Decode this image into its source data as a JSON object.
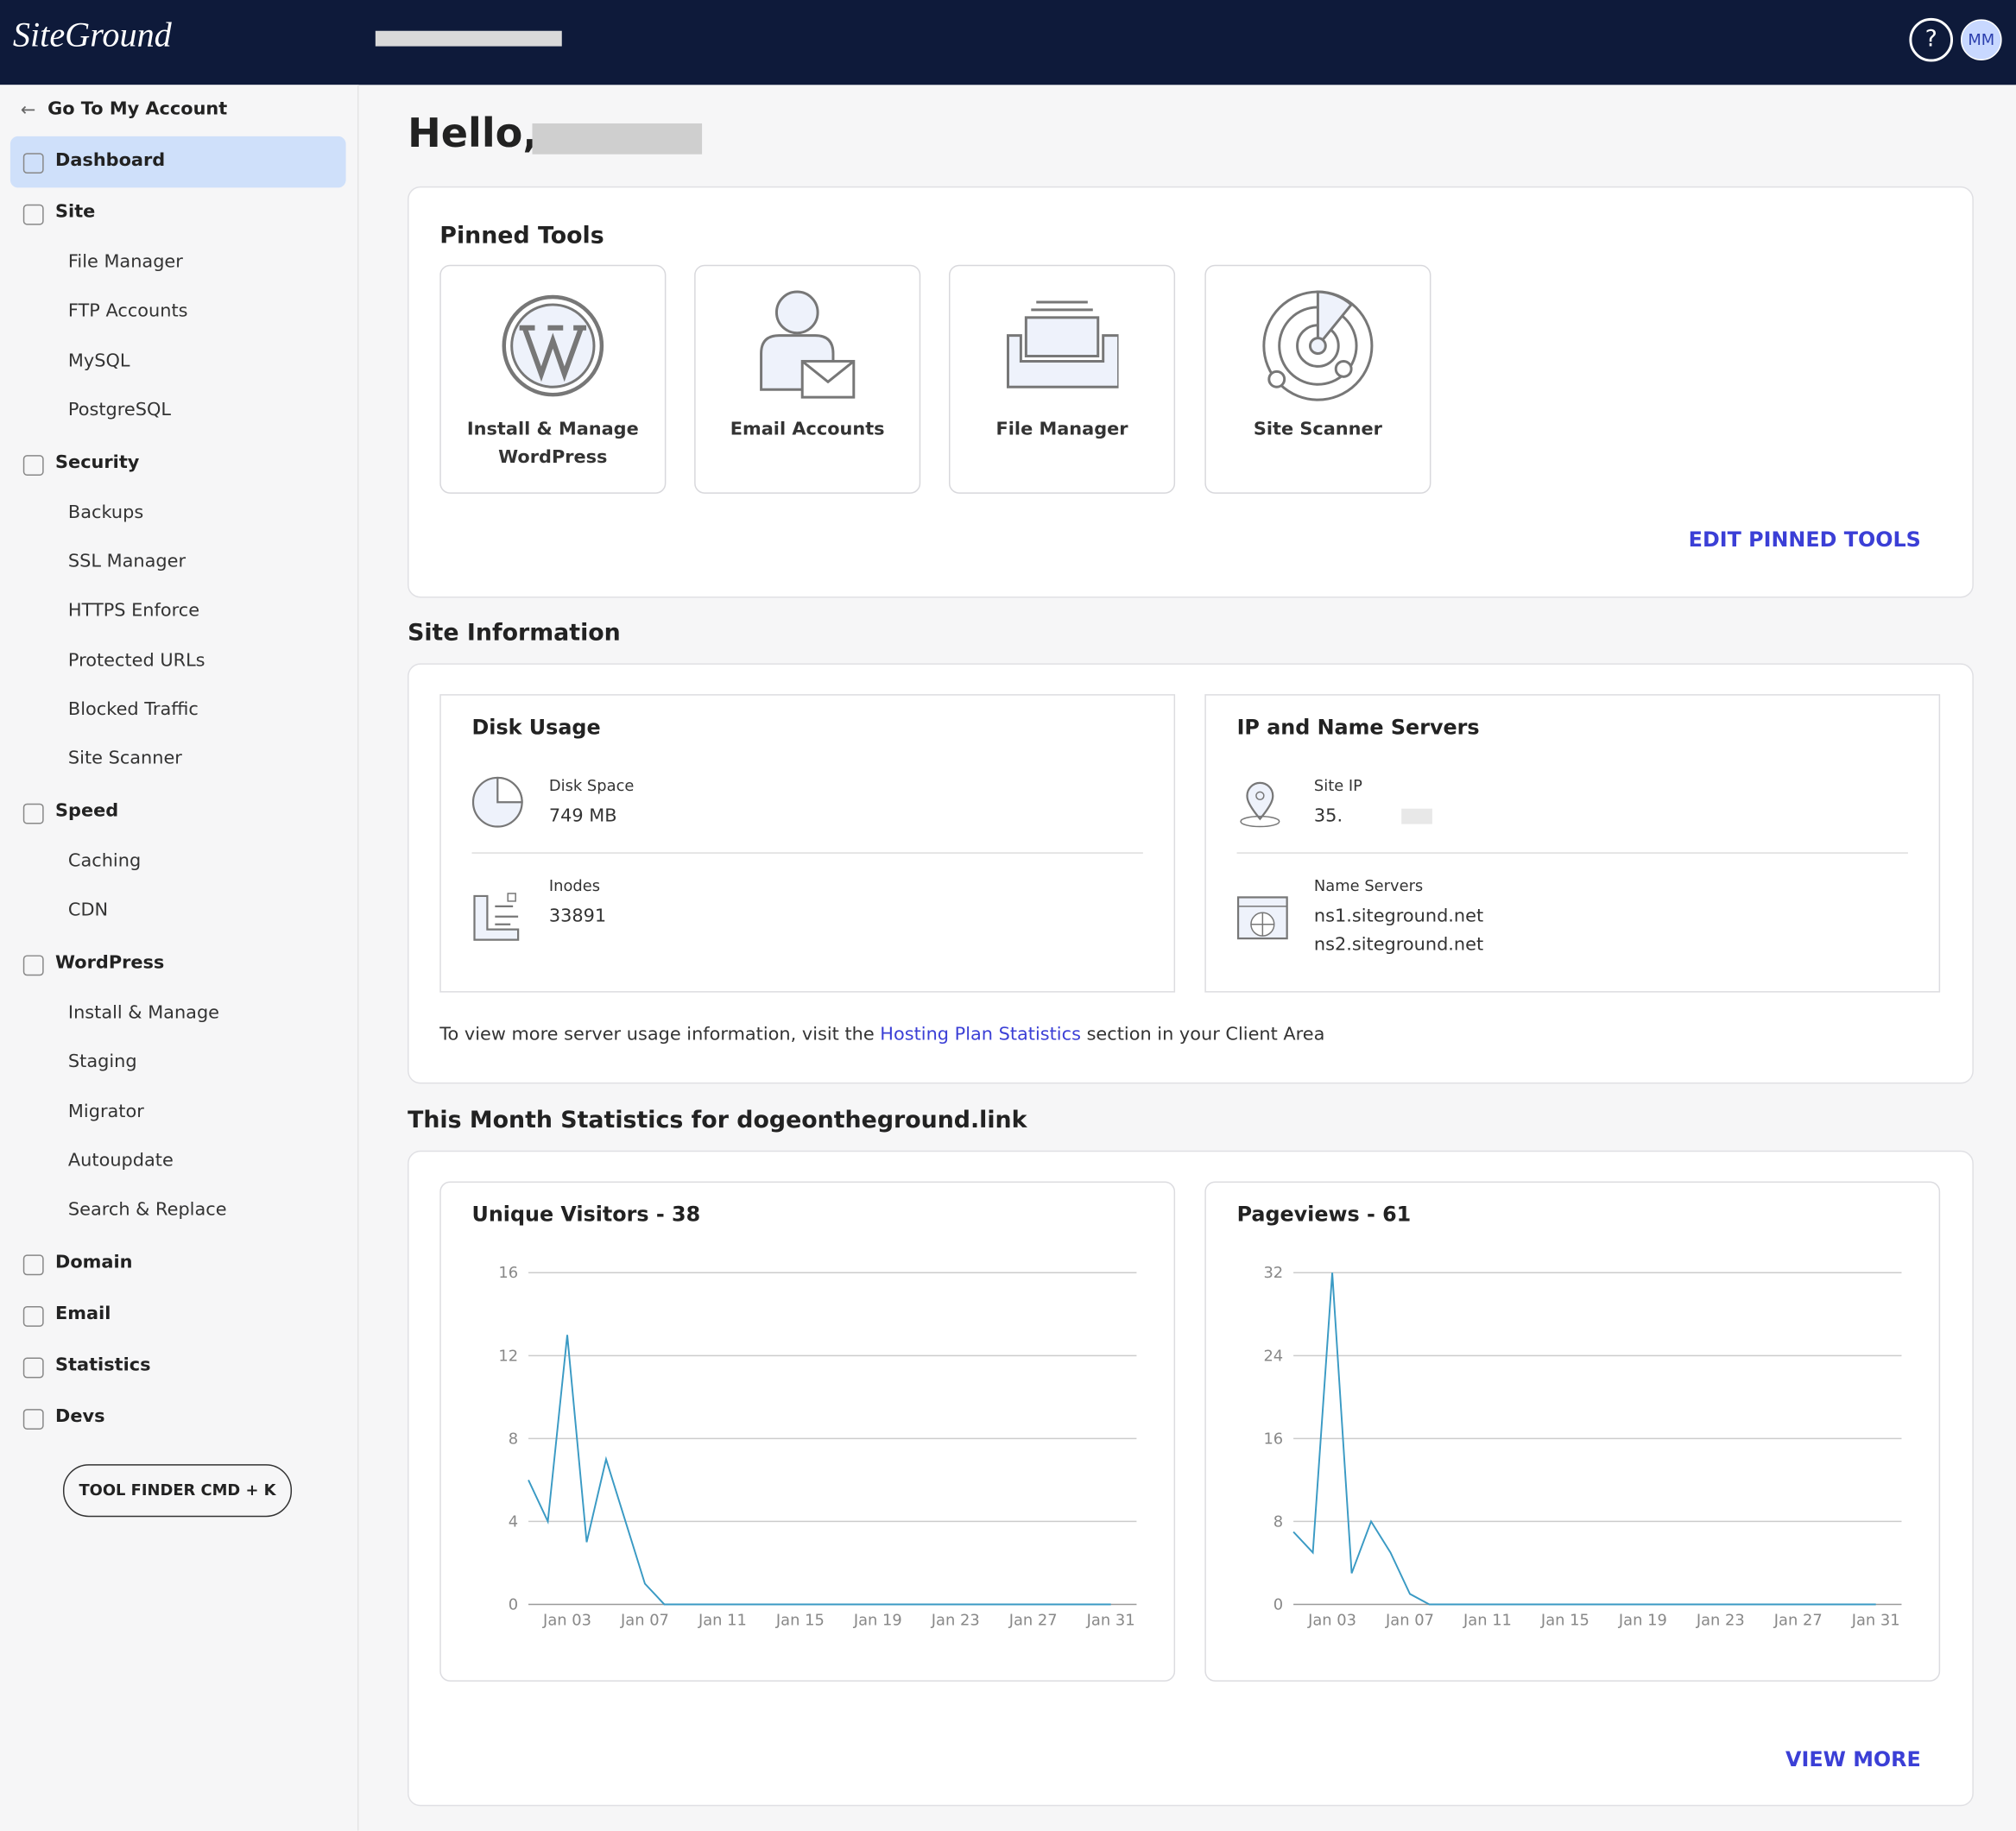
{
  "header": {
    "logo": "SiteGround",
    "help": "?",
    "avatar": "MM"
  },
  "sidebar": {
    "back": "Go To My Account",
    "sections": [
      {
        "label": "Dashboard",
        "items": []
      },
      {
        "label": "Site",
        "items": [
          "File Manager",
          "FTP Accounts",
          "MySQL",
          "PostgreSQL"
        ]
      },
      {
        "label": "Security",
        "items": [
          "Backups",
          "SSL Manager",
          "HTTPS Enforce",
          "Protected URLs",
          "Blocked Traffic",
          "Site Scanner"
        ]
      },
      {
        "label": "Speed",
        "items": [
          "Caching",
          "CDN"
        ]
      },
      {
        "label": "WordPress",
        "items": [
          "Install & Manage",
          "Staging",
          "Migrator",
          "Autoupdate",
          "Search & Replace"
        ]
      },
      {
        "label": "Domain",
        "items": []
      },
      {
        "label": "Email",
        "items": []
      },
      {
        "label": "Statistics",
        "items": []
      },
      {
        "label": "Devs",
        "items": []
      }
    ],
    "tool_finder": "TOOL FINDER CMD + K"
  },
  "greeting": "Hello,",
  "pinned": {
    "title": "Pinned Tools",
    "tools": [
      "Install & Manage WordPress",
      "Email Accounts",
      "File Manager",
      "Site Scanner"
    ],
    "edit": "EDIT PINNED TOOLS"
  },
  "site_info": {
    "title": "Site Information",
    "disk": {
      "title": "Disk Usage",
      "space_label": "Disk Space",
      "space": "749 MB",
      "inodes_label": "Inodes",
      "inodes": "33891"
    },
    "ip": {
      "title": "IP and Name Servers",
      "ip_label": "Site IP",
      "ip": "35.",
      "ns_label": "Name Servers",
      "ns": [
        "ns1.siteground.net",
        "ns2.siteground.net"
      ]
    },
    "note": {
      "before": "To view more server usage information, visit the",
      "link": "Hosting Plan Statistics",
      "after": "section in your Client Area"
    }
  },
  "stats": {
    "title": "This Month Statistics for dogeontheground.link",
    "view_more": "VIEW MORE"
  },
  "chart_data": [
    {
      "type": "line",
      "title": "Unique Visitors - 38",
      "color": "#3a9ac4",
      "grid": true,
      "ylim": [
        0,
        16
      ],
      "yticks": [
        0,
        4,
        8,
        12,
        16
      ],
      "categories": [
        null,
        null,
        "Jan 03",
        null,
        null,
        null,
        "Jan 07",
        null,
        null,
        null,
        "Jan 11",
        null,
        null,
        null,
        "Jan 15",
        null,
        null,
        null,
        "Jan 19",
        null,
        null,
        null,
        "Jan 23",
        null,
        null,
        null,
        "Jan 27",
        null,
        null,
        null,
        "Jan 31"
      ],
      "values": [
        6,
        4,
        13,
        3,
        7,
        4,
        1,
        0,
        0,
        0,
        0,
        0,
        0,
        0,
        0,
        0,
        0,
        0,
        0,
        0,
        0,
        0,
        0,
        0,
        0,
        0,
        0,
        0,
        0,
        0,
        0
      ]
    },
    {
      "type": "line",
      "title": "Pageviews - 61",
      "color": "#3a9ac4",
      "grid": true,
      "ylim": [
        0,
        32
      ],
      "yticks": [
        0,
        8,
        16,
        24,
        32
      ],
      "categories": [
        null,
        null,
        "Jan 03",
        null,
        null,
        null,
        "Jan 07",
        null,
        null,
        null,
        "Jan 11",
        null,
        null,
        null,
        "Jan 15",
        null,
        null,
        null,
        "Jan 19",
        null,
        null,
        null,
        "Jan 23",
        null,
        null,
        null,
        "Jan 27",
        null,
        null,
        null,
        "Jan 31"
      ],
      "values": [
        7,
        5,
        32,
        3,
        8,
        5,
        1,
        0,
        0,
        0,
        0,
        0,
        0,
        0,
        0,
        0,
        0,
        0,
        0,
        0,
        0,
        0,
        0,
        0,
        0,
        0,
        0,
        0,
        0,
        0,
        0
      ]
    }
  ]
}
